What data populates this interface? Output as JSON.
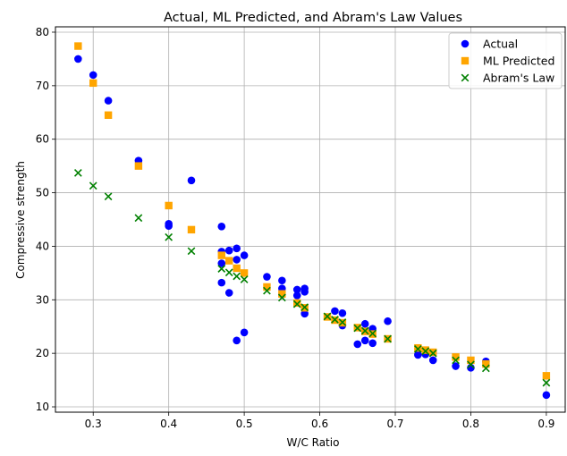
{
  "chart_data": {
    "type": "scatter",
    "title": "Actual, ML Predicted, and Abram's Law Values",
    "xlabel": "W/C Ratio",
    "ylabel": "Compressive strength",
    "xlim": [
      0.25,
      0.925
    ],
    "ylim": [
      9,
      81
    ],
    "xticks": [
      0.3,
      0.4,
      0.5,
      0.6,
      0.7,
      0.8,
      0.9
    ],
    "xtick_labels": [
      "0.3",
      "0.4",
      "0.5",
      "0.6",
      "0.7",
      "0.8",
      "0.9"
    ],
    "yticks": [
      10,
      20,
      30,
      40,
      50,
      60,
      70,
      80
    ],
    "ytick_labels": [
      "10",
      "20",
      "30",
      "40",
      "50",
      "60",
      "70",
      "80"
    ],
    "grid": true,
    "legend_position": "top-right",
    "series": [
      {
        "name": "Actual",
        "marker": "circle",
        "color": "#0000ff",
        "points": [
          [
            0.28,
            75.0
          ],
          [
            0.3,
            72.0
          ],
          [
            0.32,
            67.2
          ],
          [
            0.36,
            56.0
          ],
          [
            0.4,
            44.2
          ],
          [
            0.4,
            43.8
          ],
          [
            0.43,
            52.3
          ],
          [
            0.47,
            43.7
          ],
          [
            0.47,
            39.0
          ],
          [
            0.47,
            36.8
          ],
          [
            0.47,
            33.2
          ],
          [
            0.48,
            39.2
          ],
          [
            0.48,
            31.3
          ],
          [
            0.49,
            39.6
          ],
          [
            0.49,
            37.5
          ],
          [
            0.49,
            22.4
          ],
          [
            0.5,
            38.3
          ],
          [
            0.5,
            23.9
          ],
          [
            0.53,
            34.3
          ],
          [
            0.55,
            33.6
          ],
          [
            0.55,
            32.1
          ],
          [
            0.55,
            31.0
          ],
          [
            0.57,
            31.9
          ],
          [
            0.57,
            30.8
          ],
          [
            0.58,
            32.1
          ],
          [
            0.58,
            31.5
          ],
          [
            0.58,
            27.4
          ],
          [
            0.62,
            27.9
          ],
          [
            0.63,
            27.5
          ],
          [
            0.63,
            25.2
          ],
          [
            0.65,
            21.7
          ],
          [
            0.66,
            25.5
          ],
          [
            0.66,
            22.4
          ],
          [
            0.67,
            24.6
          ],
          [
            0.67,
            21.9
          ],
          [
            0.69,
            26.0
          ],
          [
            0.73,
            19.7
          ],
          [
            0.74,
            19.8
          ],
          [
            0.75,
            18.7
          ],
          [
            0.78,
            17.6
          ],
          [
            0.8,
            17.3
          ],
          [
            0.82,
            18.5
          ],
          [
            0.9,
            12.2
          ]
        ]
      },
      {
        "name": "ML Predicted",
        "marker": "square",
        "color": "#ffa500",
        "points": [
          [
            0.28,
            77.4
          ],
          [
            0.3,
            70.5
          ],
          [
            0.32,
            64.5
          ],
          [
            0.36,
            55.0
          ],
          [
            0.4,
            47.6
          ],
          [
            0.43,
            43.1
          ],
          [
            0.47,
            38.3
          ],
          [
            0.48,
            37.3
          ],
          [
            0.49,
            35.9
          ],
          [
            0.5,
            35.0
          ],
          [
            0.53,
            32.4
          ],
          [
            0.55,
            31.1
          ],
          [
            0.57,
            29.4
          ],
          [
            0.58,
            28.5
          ],
          [
            0.61,
            26.8
          ],
          [
            0.62,
            26.2
          ],
          [
            0.63,
            25.7
          ],
          [
            0.65,
            24.8
          ],
          [
            0.66,
            24.1
          ],
          [
            0.67,
            23.6
          ],
          [
            0.69,
            22.7
          ],
          [
            0.73,
            21.0
          ],
          [
            0.74,
            20.6
          ],
          [
            0.75,
            20.2
          ],
          [
            0.78,
            19.3
          ],
          [
            0.8,
            18.7
          ],
          [
            0.82,
            18.0
          ],
          [
            0.9,
            15.8
          ]
        ]
      },
      {
        "name": "Abram's Law",
        "marker": "x",
        "color": "#008000",
        "points": [
          [
            0.28,
            53.7
          ],
          [
            0.3,
            51.3
          ],
          [
            0.32,
            49.3
          ],
          [
            0.36,
            45.3
          ],
          [
            0.4,
            41.7
          ],
          [
            0.43,
            39.1
          ],
          [
            0.47,
            35.8
          ],
          [
            0.48,
            35.1
          ],
          [
            0.49,
            34.4
          ],
          [
            0.5,
            33.8
          ],
          [
            0.53,
            31.7
          ],
          [
            0.55,
            30.4
          ],
          [
            0.57,
            29.2
          ],
          [
            0.58,
            28.6
          ],
          [
            0.61,
            26.9
          ],
          [
            0.62,
            26.3
          ],
          [
            0.63,
            25.8
          ],
          [
            0.65,
            24.7
          ],
          [
            0.66,
            24.2
          ],
          [
            0.67,
            23.7
          ],
          [
            0.69,
            22.7
          ],
          [
            0.73,
            20.8
          ],
          [
            0.74,
            20.4
          ],
          [
            0.75,
            20.0
          ],
          [
            0.78,
            18.7
          ],
          [
            0.8,
            17.9
          ],
          [
            0.82,
            17.2
          ],
          [
            0.9,
            14.5
          ]
        ]
      }
    ]
  }
}
